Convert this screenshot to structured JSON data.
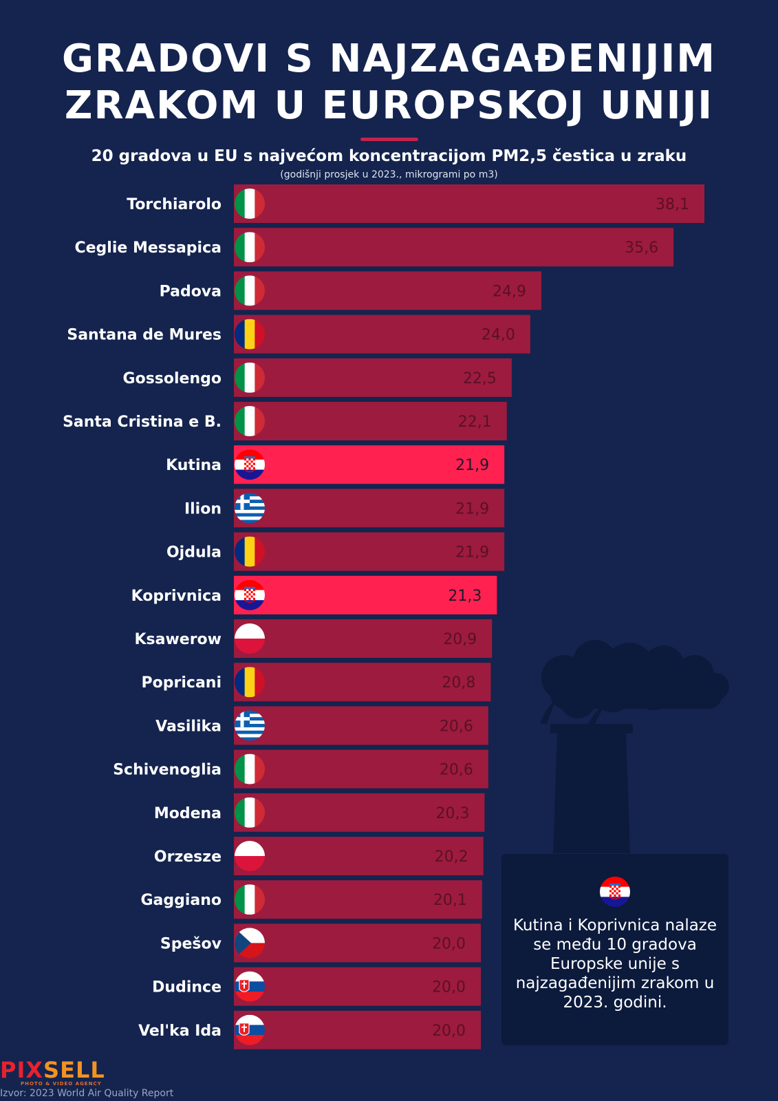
{
  "title_lines": [
    "GRADOVI S NAJZAGAĐENIJIM",
    "ZRAKOM U EUROPSKOJ UNIJI"
  ],
  "subtitle": "20 gradova u EU s najvećom koncentracijom PM2,5 čestica u zraku",
  "note": "(godišnji prosjek u 2023., mikrogrami po m3)",
  "chart_data": {
    "type": "bar",
    "orientation": "horizontal",
    "title": "GRADOVI S NAJZAGAĐENIJIM ZRAKOM U EUROPSKOJ UNIJI",
    "xlim": [
      0,
      38.1
    ],
    "grid": false,
    "colors": {
      "default": "#9d1b3e",
      "highlight": "#ff2150"
    },
    "categories": [
      "Torchiarolo",
      "Ceglie Messapica",
      "Padova",
      "Santana de Mures",
      "Gossolengo",
      "Santa Cristina e B.",
      "Kutina",
      "Ilion",
      "Ojdula",
      "Koprivnica",
      "Ksawerow",
      "Popricani",
      "Vasilika",
      "Schivenoglia",
      "Modena",
      "Orzesze",
      "Gaggiano",
      "Spešov",
      "Dudince",
      "Vel'ka Ida"
    ],
    "values": [
      38.1,
      35.6,
      24.9,
      24.0,
      22.5,
      22.1,
      21.9,
      21.9,
      21.9,
      21.3,
      20.9,
      20.8,
      20.6,
      20.6,
      20.3,
      20.2,
      20.1,
      20.0,
      20.0,
      20.0
    ],
    "value_labels": [
      "38,1",
      "35,6",
      "24,9",
      "24,0",
      "22,5",
      "22,1",
      "21,9",
      "21,9",
      "21,9",
      "21,3",
      "20,9",
      "20,8",
      "20,6",
      "20,6",
      "20,3",
      "20,2",
      "20,1",
      "20,0",
      "20,0",
      "20,0"
    ],
    "flags": [
      "italy-flag-icon",
      "italy-flag-icon",
      "italy-flag-icon",
      "romania-flag-icon",
      "italy-flag-icon",
      "italy-flag-icon",
      "croatia-flag-icon",
      "greece-flag-icon",
      "romania-flag-icon",
      "croatia-flag-icon",
      "poland-flag-icon",
      "romania-flag-icon",
      "greece-flag-icon",
      "italy-flag-icon",
      "italy-flag-icon",
      "poland-flag-icon",
      "italy-flag-icon",
      "czechia-flag-icon",
      "slovakia-flag-icon",
      "slovakia-flag-icon"
    ],
    "highlighted": [
      "Kutina",
      "Koprivnica"
    ]
  },
  "callout": {
    "flag": "croatia-flag-icon",
    "text": "Kutina i Koprivnica nalaze se među 10 gradova Europske unije s najzagađenijim zrakom u 2023. godini."
  },
  "logo": {
    "part1": "PIX",
    "part2": "SELL",
    "tagline": "PHOTO & VIDEO AGENCY"
  },
  "source": "Izvor: 2023 World Air Quality Report"
}
